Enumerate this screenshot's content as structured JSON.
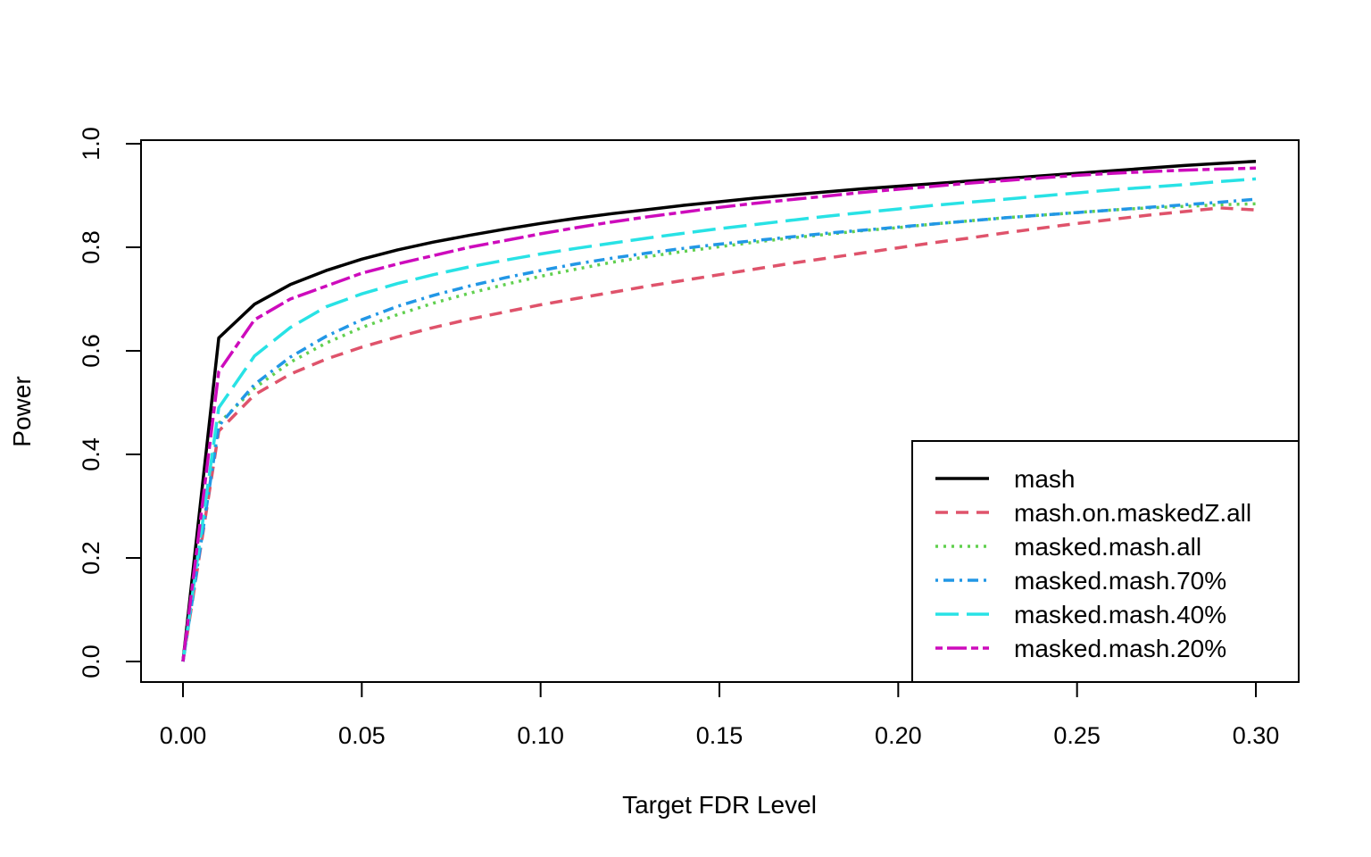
{
  "chart_data": {
    "type": "line",
    "xlabel": "Target FDR Level",
    "ylabel": "Power",
    "xlim": [
      0,
      0.3
    ],
    "ylim": [
      0,
      1.0
    ],
    "xticks": [
      "0.00",
      "0.05",
      "0.10",
      "0.15",
      "0.20",
      "0.25",
      "0.30"
    ],
    "yticks": [
      "0.0",
      "0.2",
      "0.4",
      "0.6",
      "0.8",
      "1.0"
    ],
    "grid": false,
    "legend_position": "bottom-right",
    "x": [
      0,
      0.01,
      0.02,
      0.03,
      0.04,
      0.05,
      0.06,
      0.07,
      0.08,
      0.09,
      0.1,
      0.11,
      0.12,
      0.13,
      0.14,
      0.15,
      0.16,
      0.17,
      0.18,
      0.19,
      0.2,
      0.21,
      0.22,
      0.23,
      0.24,
      0.25,
      0.26,
      0.27,
      0.28,
      0.29,
      0.3
    ],
    "series": [
      {
        "name": "mash",
        "color": "#000000",
        "dash": "solid",
        "values": [
          0,
          0.625,
          0.69,
          0.728,
          0.755,
          0.777,
          0.795,
          0.81,
          0.823,
          0.835,
          0.846,
          0.856,
          0.865,
          0.873,
          0.881,
          0.888,
          0.895,
          0.901,
          0.907,
          0.913,
          0.918,
          0.923,
          0.928,
          0.933,
          0.938,
          0.943,
          0.948,
          0.953,
          0.958,
          0.962,
          0.966
        ]
      },
      {
        "name": "mash.on.maskedZ.all",
        "color": "#DF536B",
        "dash": "dashed",
        "values": [
          0,
          0.445,
          0.515,
          0.555,
          0.584,
          0.607,
          0.627,
          0.645,
          0.661,
          0.675,
          0.689,
          0.701,
          0.713,
          0.725,
          0.736,
          0.747,
          0.758,
          0.769,
          0.779,
          0.789,
          0.799,
          0.809,
          0.818,
          0.828,
          0.837,
          0.846,
          0.854,
          0.862,
          0.869,
          0.876,
          0.872
        ]
      },
      {
        "name": "masked.mash.all",
        "color": "#61D04F",
        "dash": "dotted",
        "values": [
          0,
          0.46,
          0.528,
          0.578,
          0.615,
          0.645,
          0.67,
          0.692,
          0.711,
          0.728,
          0.744,
          0.758,
          0.771,
          0.782,
          0.792,
          0.801,
          0.81,
          0.818,
          0.825,
          0.832,
          0.838,
          0.845,
          0.851,
          0.857,
          0.862,
          0.867,
          0.872,
          0.876,
          0.879,
          0.882,
          0.884
        ]
      },
      {
        "name": "masked.mash.70%",
        "color": "#2297E6",
        "dash": "dotdash",
        "values": [
          0,
          0.455,
          0.535,
          0.588,
          0.628,
          0.66,
          0.686,
          0.707,
          0.725,
          0.741,
          0.755,
          0.768,
          0.779,
          0.789,
          0.798,
          0.806,
          0.813,
          0.82,
          0.827,
          0.833,
          0.839,
          0.845,
          0.851,
          0.857,
          0.862,
          0.867,
          0.872,
          0.877,
          0.882,
          0.887,
          0.893
        ]
      },
      {
        "name": "masked.mash.40%",
        "color": "#28E2E5",
        "dash": "longdash",
        "values": [
          0,
          0.49,
          0.59,
          0.645,
          0.685,
          0.71,
          0.73,
          0.747,
          0.762,
          0.775,
          0.787,
          0.798,
          0.808,
          0.818,
          0.827,
          0.836,
          0.844,
          0.852,
          0.86,
          0.867,
          0.874,
          0.881,
          0.887,
          0.893,
          0.899,
          0.905,
          0.911,
          0.916,
          0.921,
          0.927,
          0.932
        ]
      },
      {
        "name": "masked.mash.20%",
        "color": "#CD0BBC",
        "dash": "twodash",
        "values": [
          0,
          0.56,
          0.66,
          0.7,
          0.725,
          0.75,
          0.768,
          0.784,
          0.8,
          0.813,
          0.826,
          0.838,
          0.849,
          0.859,
          0.868,
          0.877,
          0.885,
          0.892,
          0.899,
          0.906,
          0.912,
          0.918,
          0.924,
          0.929,
          0.934,
          0.939,
          0.943,
          0.946,
          0.949,
          0.951,
          0.953
        ]
      }
    ]
  }
}
